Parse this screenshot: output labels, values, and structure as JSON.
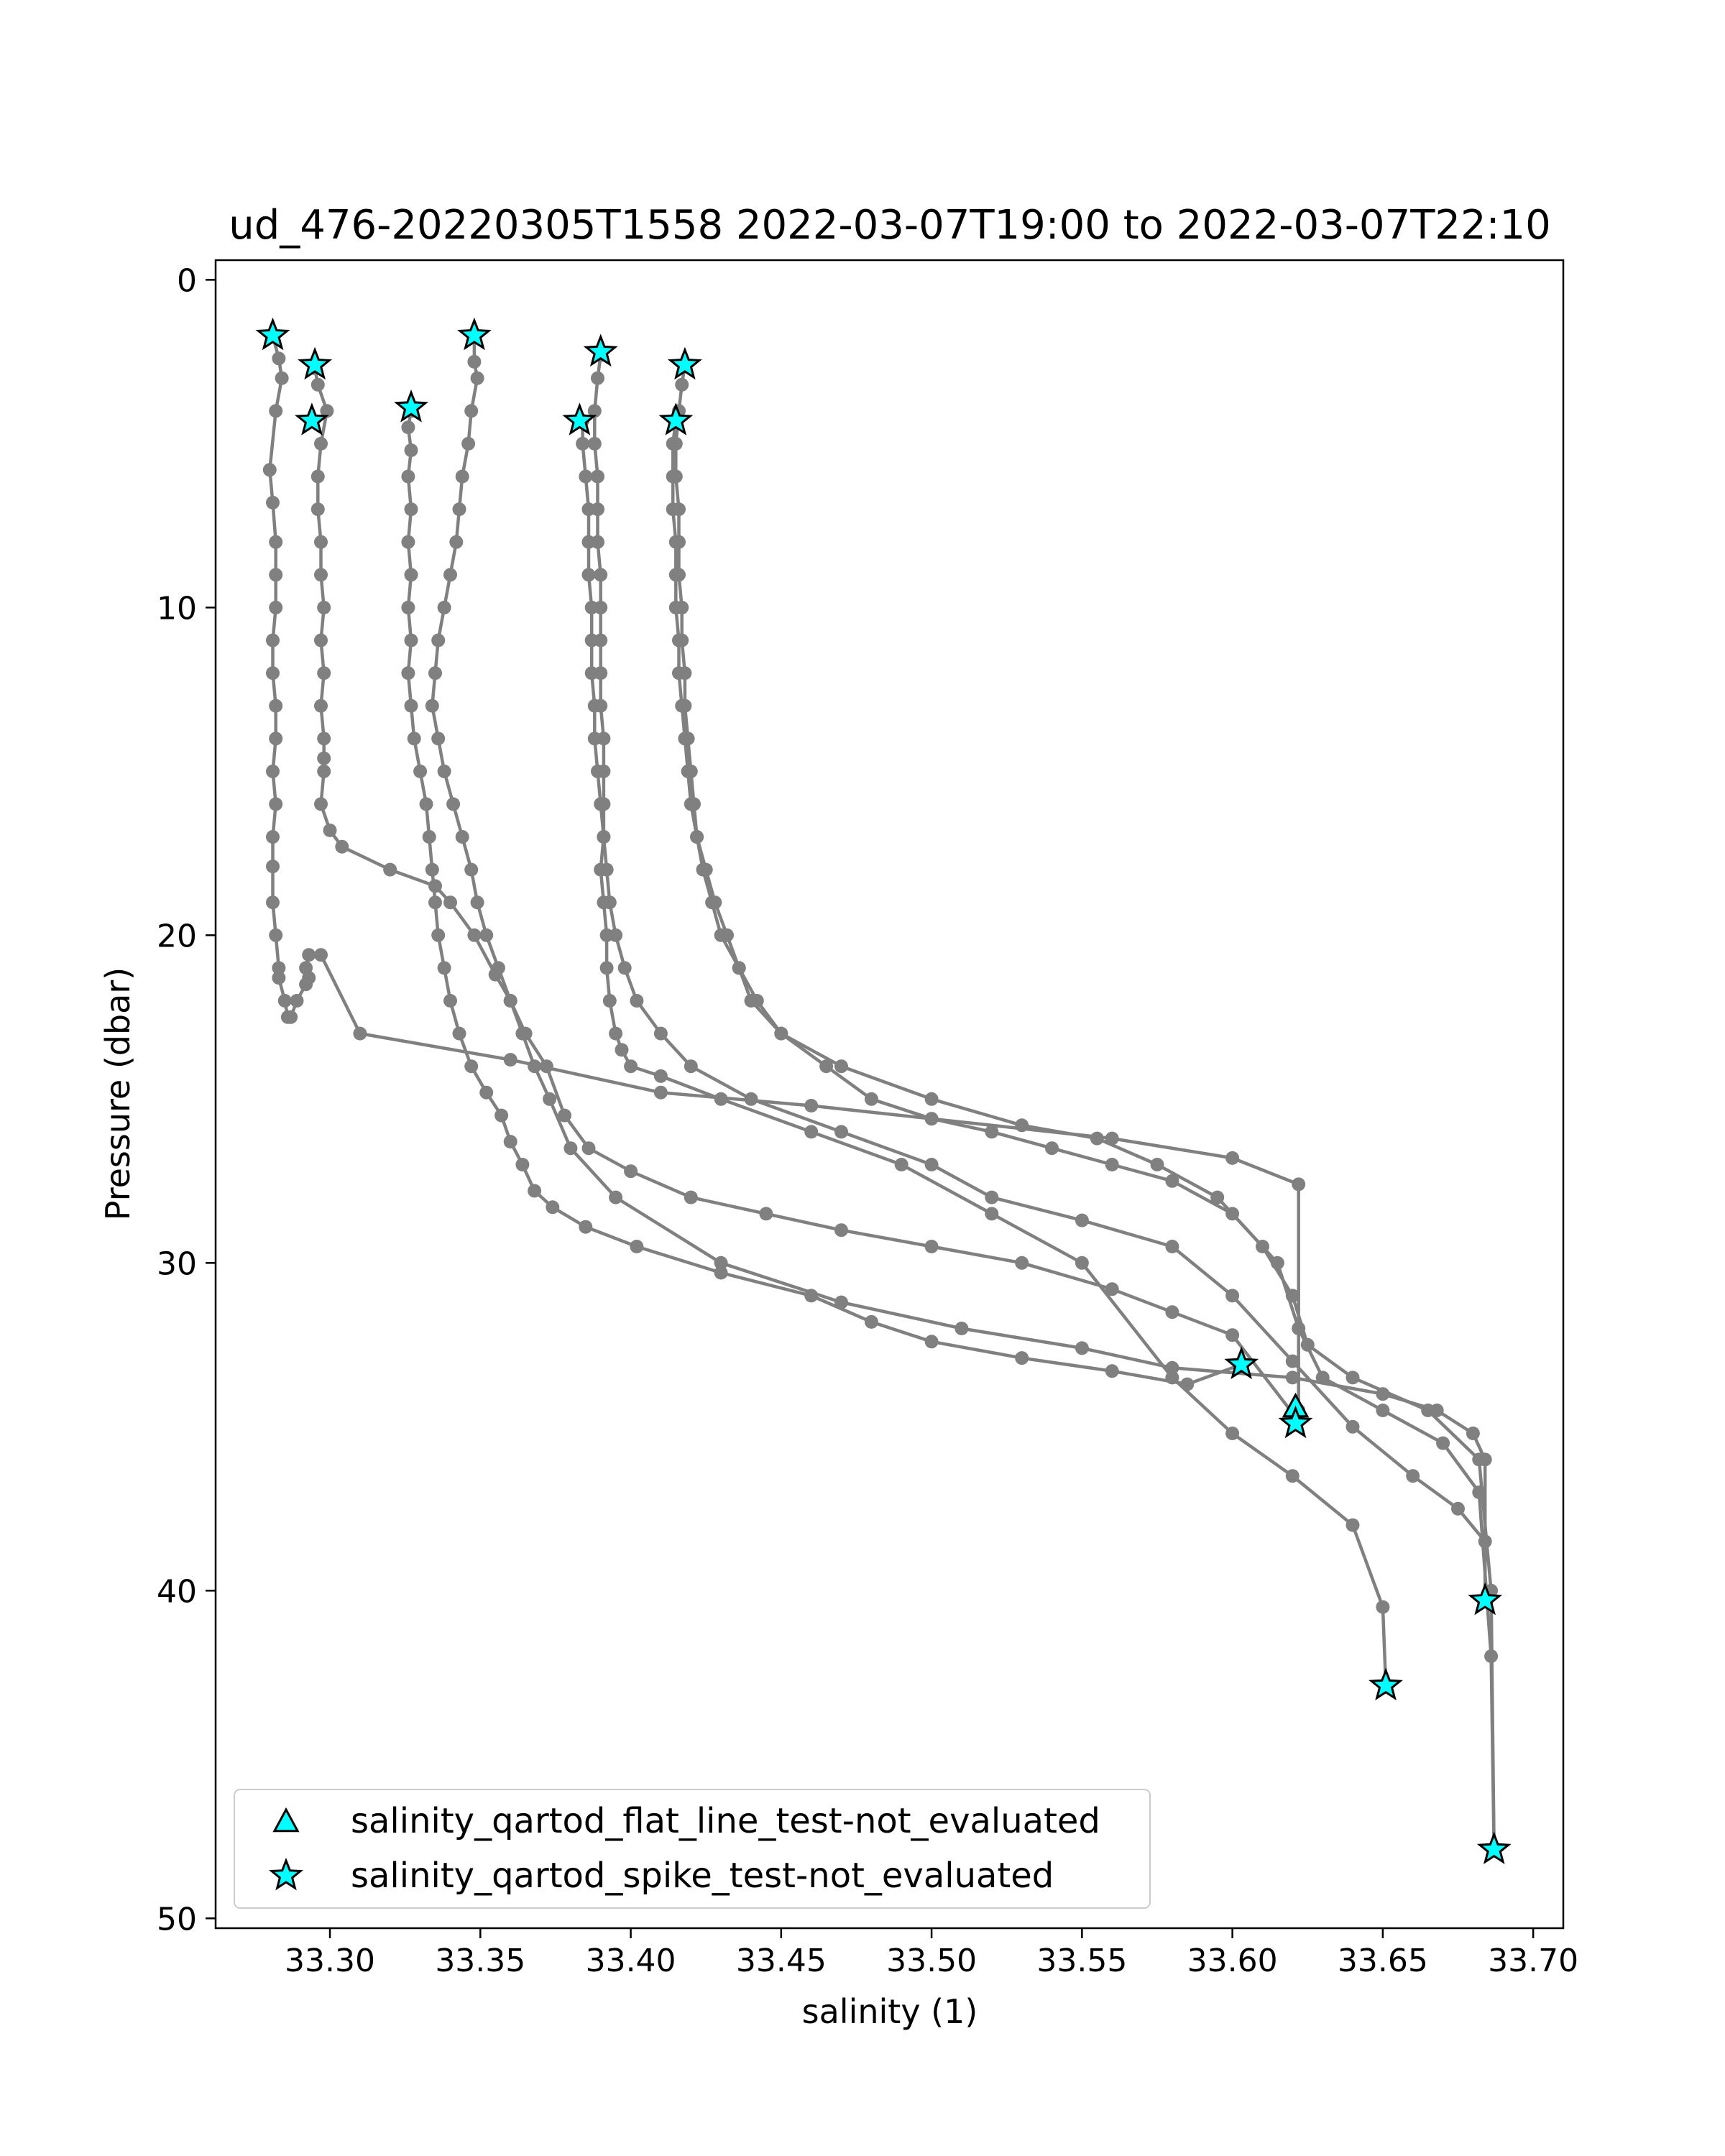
{
  "chart_data": {
    "type": "scatter",
    "title": "ud_476-20220305T1558 2022-03-07T19:00 to 2022-03-07T22:10",
    "xlabel": "salinity (1)",
    "ylabel": "Pressure (dbar)",
    "xlim": [
      33.262,
      33.71
    ],
    "ylim": [
      50.3,
      -0.6
    ],
    "y_inverted": true,
    "grid": false,
    "legend_position": "lower-left",
    "line_color": "#808080",
    "marker_fill": "#00ffff",
    "x_ticks": [
      {
        "value": 33.3,
        "label": "33.30"
      },
      {
        "value": 33.35,
        "label": "33.35"
      },
      {
        "value": 33.4,
        "label": "33.40"
      },
      {
        "value": 33.45,
        "label": "33.45"
      },
      {
        "value": 33.5,
        "label": "33.50"
      },
      {
        "value": 33.55,
        "label": "33.55"
      },
      {
        "value": 33.6,
        "label": "33.60"
      },
      {
        "value": 33.65,
        "label": "33.65"
      },
      {
        "value": 33.7,
        "label": "33.70"
      }
    ],
    "y_ticks": [
      {
        "value": 0,
        "label": "0"
      },
      {
        "value": 10,
        "label": "10"
      },
      {
        "value": 20,
        "label": "20"
      },
      {
        "value": 30,
        "label": "30"
      },
      {
        "value": 40,
        "label": "40"
      },
      {
        "value": 50,
        "label": "50"
      }
    ],
    "profiles": [
      {
        "x": [
          33.281,
          33.283,
          33.284,
          33.282,
          33.28,
          33.281,
          33.282,
          33.282,
          33.282,
          33.281,
          33.281,
          33.282,
          33.282,
          33.281,
          33.282,
          33.281,
          33.281,
          33.281,
          33.282,
          33.283,
          33.283,
          33.285,
          33.286,
          33.287,
          33.289,
          33.292,
          33.293,
          33.292,
          33.293,
          33.297,
          33.31,
          33.36,
          33.41,
          33.46,
          33.5,
          33.56,
          33.6,
          33.622,
          33.622
        ],
        "y": [
          1.7,
          2.4,
          3.0,
          4.0,
          5.8,
          6.8,
          8.0,
          9.0,
          10.0,
          11.0,
          12.0,
          13.0,
          14.0,
          15.0,
          16.0,
          17.0,
          17.9,
          19.0,
          20.0,
          21.0,
          21.3,
          22.0,
          22.5,
          22.5,
          22.0,
          21.5,
          21.3,
          21.0,
          20.6,
          20.6,
          23.0,
          23.8,
          24.8,
          25.2,
          25.6,
          26.2,
          26.8,
          27.6,
          34.5
        ]
      },
      {
        "x": [
          33.295,
          33.296,
          33.299,
          33.297,
          33.296,
          33.296,
          33.297,
          33.297,
          33.298,
          33.297,
          33.298,
          33.297,
          33.298,
          33.298,
          33.298,
          33.297,
          33.3,
          33.304,
          33.32,
          33.335,
          33.34,
          33.348,
          33.355,
          33.36,
          33.365,
          33.372,
          33.378,
          33.386,
          33.4,
          33.42,
          33.445,
          33.47,
          33.5,
          33.53,
          33.56,
          33.58,
          33.6,
          33.621
        ],
        "y": [
          2.7,
          3.2,
          4.0,
          5.0,
          6.0,
          7.0,
          8.0,
          9.0,
          10.0,
          11.0,
          12.0,
          13.0,
          14.0,
          14.6,
          15.0,
          16.0,
          16.8,
          17.3,
          18.0,
          18.5,
          19.0,
          20.0,
          21.2,
          22.0,
          23.0,
          24.0,
          25.5,
          26.5,
          27.2,
          28.0,
          28.5,
          29.0,
          29.5,
          30.0,
          30.8,
          31.5,
          32.2,
          34.7
        ]
      },
      {
        "x": [
          33.327,
          33.326,
          33.327,
          33.326,
          33.327,
          33.326,
          33.327,
          33.326,
          33.327,
          33.326,
          33.327,
          33.328,
          33.33,
          33.332,
          33.333,
          33.334,
          33.335,
          33.336,
          33.338,
          33.34,
          33.343,
          33.347,
          33.352,
          33.357,
          33.36,
          33.364,
          33.368,
          33.374,
          33.385,
          33.402,
          33.43,
          33.46,
          33.48,
          33.5,
          33.53,
          33.56,
          33.585,
          33.603
        ],
        "y": [
          4.0,
          4.5,
          5.2,
          6.0,
          7.0,
          8.0,
          9.0,
          10.0,
          11.0,
          12.0,
          13.0,
          14.0,
          15.0,
          16.0,
          17.0,
          18.0,
          19.0,
          20.0,
          21.0,
          22.0,
          23.0,
          24.0,
          24.8,
          25.5,
          26.3,
          27.0,
          27.8,
          28.3,
          28.9,
          29.5,
          30.3,
          31.0,
          31.8,
          32.4,
          32.9,
          33.3,
          33.7,
          33.1
        ]
      },
      {
        "x": [
          33.348,
          33.348,
          33.349,
          33.347,
          33.346,
          33.344,
          33.343,
          33.342,
          33.34,
          33.338,
          33.336,
          33.335,
          33.334,
          33.336,
          33.338,
          33.341,
          33.344,
          33.347,
          33.349,
          33.352,
          33.356,
          33.36,
          33.364,
          33.368,
          33.373,
          33.38,
          33.395,
          33.43,
          33.47,
          33.51,
          33.55,
          33.58,
          33.62,
          33.65,
          33.668,
          33.68,
          33.684,
          33.684
        ],
        "y": [
          1.7,
          2.5,
          3.0,
          4.0,
          5.0,
          6.0,
          7.0,
          8.0,
          9.0,
          10.0,
          11.0,
          12.0,
          13.0,
          14.0,
          15.0,
          16.0,
          17.0,
          18.0,
          19.0,
          20.0,
          21.0,
          22.0,
          23.0,
          24.0,
          25.0,
          26.5,
          28.0,
          30.0,
          31.2,
          32.0,
          32.6,
          33.2,
          33.5,
          34.0,
          34.5,
          35.2,
          36.0,
          40.3
        ]
      },
      {
        "x": [
          33.39,
          33.389,
          33.388,
          33.388,
          33.389,
          33.389,
          33.389,
          33.39,
          33.39,
          33.39,
          33.39,
          33.39,
          33.391,
          33.391,
          33.391,
          33.391,
          33.39,
          33.391,
          33.392,
          33.392,
          33.393,
          33.395,
          33.397,
          33.4,
          33.41,
          33.43,
          33.46,
          33.49,
          33.52,
          33.55,
          33.58,
          33.6,
          33.62,
          33.64,
          33.65,
          33.651
        ],
        "y": [
          2.3,
          3.0,
          4.0,
          5.0,
          6.0,
          7.0,
          8.0,
          9.0,
          10.0,
          11.0,
          12.0,
          13.0,
          14.0,
          15.0,
          16.0,
          17.0,
          18.0,
          19.0,
          20.0,
          21.0,
          22.0,
          23.0,
          23.5,
          24.0,
          24.3,
          25.0,
          26.0,
          27.0,
          28.5,
          30.0,
          33.5,
          35.2,
          36.5,
          38.0,
          40.5,
          42.9
        ]
      },
      {
        "x": [
          33.384,
          33.384,
          33.385,
          33.386,
          33.386,
          33.386,
          33.387,
          33.387,
          33.387,
          33.388,
          33.388,
          33.389,
          33.39,
          33.391,
          33.392,
          33.393,
          33.395,
          33.398,
          33.402,
          33.41,
          33.42,
          33.44,
          33.47,
          33.5,
          33.52,
          33.55,
          33.58,
          33.6,
          33.62,
          33.64,
          33.66,
          33.675,
          33.684,
          33.684
        ],
        "y": [
          4.3,
          5.0,
          6.0,
          7.0,
          8.0,
          9.0,
          10.0,
          11.0,
          12.0,
          13.0,
          14.0,
          15.0,
          16.0,
          17.0,
          18.0,
          19.0,
          20.0,
          21.0,
          22.0,
          23.0,
          24.0,
          25.0,
          26.0,
          27.0,
          28.0,
          28.7,
          29.5,
          31.0,
          33.0,
          35.0,
          36.5,
          37.5,
          38.5,
          40.3
        ]
      },
      {
        "x": [
          33.418,
          33.417,
          33.416,
          33.415,
          33.415,
          33.416,
          33.416,
          33.416,
          33.417,
          33.417,
          33.418,
          33.418,
          33.419,
          33.42,
          33.421,
          33.422,
          33.424,
          33.427,
          33.43,
          33.436,
          33.44,
          33.45,
          33.47,
          33.5,
          33.53,
          33.555,
          33.575,
          33.595,
          33.61,
          33.62,
          33.625,
          33.64,
          33.665,
          33.682,
          33.686,
          33.687
        ],
        "y": [
          2.6,
          3.2,
          4.0,
          5.0,
          6.0,
          7.0,
          8.0,
          9.0,
          10.0,
          11.0,
          12.0,
          13.0,
          14.0,
          15.0,
          16.0,
          17.0,
          18.0,
          19.0,
          20.0,
          21.0,
          22.0,
          23.0,
          24.0,
          25.0,
          25.8,
          26.2,
          27.0,
          28.0,
          29.5,
          31.0,
          32.5,
          33.5,
          34.5,
          36.0,
          40.0,
          47.9
        ]
      },
      {
        "x": [
          33.415,
          33.414,
          33.414,
          33.414,
          33.415,
          33.415,
          33.415,
          33.416,
          33.416,
          33.417,
          33.418,
          33.419,
          33.42,
          33.422,
          33.425,
          33.428,
          33.432,
          33.436,
          33.442,
          33.45,
          33.465,
          33.48,
          33.5,
          33.52,
          33.54,
          33.56,
          33.58,
          33.6,
          33.615,
          33.622,
          33.63,
          33.65,
          33.67,
          33.682,
          33.686,
          33.687
        ],
        "y": [
          4.3,
          5.0,
          6.0,
          7.0,
          8.0,
          9.0,
          10.0,
          11.0,
          12.0,
          13.0,
          14.0,
          15.0,
          16.0,
          17.0,
          18.0,
          19.0,
          20.0,
          21.0,
          22.0,
          23.0,
          24.0,
          25.0,
          25.6,
          26.0,
          26.5,
          27.0,
          27.5,
          28.5,
          30.0,
          32.0,
          33.5,
          34.5,
          35.5,
          37.0,
          42.0,
          47.9
        ]
      }
    ],
    "flat_line_markers": [
      {
        "x": 33.621,
        "y": 34.4
      }
    ],
    "spike_markers": [
      {
        "x": 33.281,
        "y": 1.7
      },
      {
        "x": 33.295,
        "y": 2.6
      },
      {
        "x": 33.294,
        "y": 4.3
      },
      {
        "x": 33.327,
        "y": 3.9
      },
      {
        "x": 33.348,
        "y": 1.7
      },
      {
        "x": 33.39,
        "y": 2.2
      },
      {
        "x": 33.383,
        "y": 4.3
      },
      {
        "x": 33.418,
        "y": 2.6
      },
      {
        "x": 33.415,
        "y": 4.3
      },
      {
        "x": 33.603,
        "y": 33.1
      },
      {
        "x": 33.621,
        "y": 34.9
      },
      {
        "x": 33.684,
        "y": 40.3
      },
      {
        "x": 33.651,
        "y": 42.9
      },
      {
        "x": 33.687,
        "y": 47.9
      }
    ],
    "legend": [
      {
        "marker": "triangle",
        "label": "salinity_qartod_flat_line_test-not_evaluated"
      },
      {
        "marker": "star",
        "label": "salinity_qartod_spike_test-not_evaluated"
      }
    ]
  }
}
